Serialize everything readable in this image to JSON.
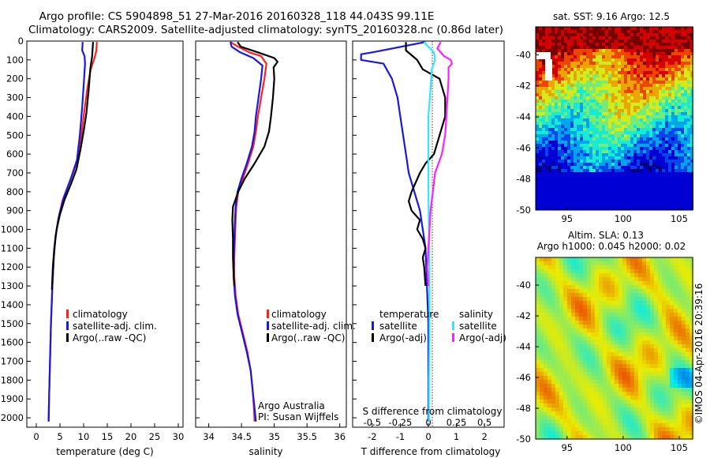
{
  "title": {
    "line1": "Argo profile: CS 5904898_51 27-Mar-2016 20160328_118 44.043S 99.11E",
    "line2": "Climatology: CARS2009. Satellite-adjusted climatology: synTS_20160328.nc (0.86d later)"
  },
  "colors": {
    "climatology": "#ff2020",
    "satellite": "#1818e0",
    "argo": "#000000",
    "sal_satellite": "#30e8ff",
    "sal_argo": "#ff20ff"
  },
  "credits": {
    "org": "Argo Australia",
    "pi": "PI: Susan Wijffels",
    "stamp": "©IMOS 04-Apr-2016 20:39:16"
  },
  "chart_data": [
    {
      "type": "line",
      "xlabel": "temperature (deg C)",
      "xlim": [
        -2,
        31
      ],
      "ylim": [
        2050,
        0
      ],
      "xticks": [
        0,
        5,
        10,
        15,
        20,
        25,
        30
      ],
      "yticks": [
        0,
        100,
        200,
        300,
        400,
        500,
        600,
        700,
        800,
        900,
        1000,
        1100,
        1200,
        1300,
        1400,
        1500,
        1600,
        1700,
        1800,
        1900,
        2000
      ],
      "legend": {
        "placement": "bottom-center",
        "entries": [
          "climatology",
          "satellite-adj. clim.",
          "Argo(..raw -QC)"
        ]
      },
      "series": [
        {
          "name": "climatology",
          "points": [
            [
              12.8,
              5
            ],
            [
              12.7,
              50
            ],
            [
              12.3,
              90
            ],
            [
              11.5,
              150
            ],
            [
              10.8,
              250
            ],
            [
              10.0,
              400
            ],
            [
              9.3,
              550
            ],
            [
              8.5,
              650
            ],
            [
              7.0,
              750
            ],
            [
              5.5,
              850
            ],
            [
              4.6,
              950
            ],
            [
              4.0,
              1050
            ],
            [
              3.7,
              1150
            ],
            [
              3.4,
              1300
            ],
            [
              3.1,
              1500
            ],
            [
              2.9,
              1700
            ],
            [
              2.7,
              1900
            ],
            [
              2.6,
              2020
            ]
          ]
        },
        {
          "name": "satellite-adj. clim.",
          "points": [
            [
              9.8,
              5
            ],
            [
              9.7,
              50
            ],
            [
              10.2,
              80
            ],
            [
              10.3,
              120
            ],
            [
              10.1,
              200
            ],
            [
              9.7,
              350
            ],
            [
              9.2,
              500
            ],
            [
              8.6,
              630
            ],
            [
              7.3,
              730
            ],
            [
              5.8,
              830
            ],
            [
              4.8,
              930
            ],
            [
              4.1,
              1030
            ],
            [
              3.7,
              1150
            ],
            [
              3.4,
              1300
            ],
            [
              3.1,
              1500
            ],
            [
              2.9,
              1700
            ],
            [
              2.7,
              1900
            ],
            [
              2.6,
              2020
            ]
          ]
        },
        {
          "name": "Argo(..raw -QC)",
          "points": [
            [
              12.0,
              5
            ],
            [
              11.9,
              40
            ],
            [
              11.8,
              80
            ],
            [
              11.4,
              150
            ],
            [
              11.1,
              250
            ],
            [
              10.6,
              380
            ],
            [
              10.0,
              480
            ],
            [
              9.3,
              580
            ],
            [
              8.5,
              680
            ],
            [
              7.3,
              760
            ],
            [
              6.0,
              840
            ],
            [
              5.0,
              920
            ],
            [
              4.3,
              1000
            ],
            [
              3.8,
              1100
            ],
            [
              3.5,
              1200
            ],
            [
              3.3,
              1320
            ]
          ]
        }
      ]
    },
    {
      "type": "line",
      "xlabel": "salinity",
      "xlim": [
        33.8,
        36.1
      ],
      "ylim": [
        2050,
        0
      ],
      "xticks": [
        34,
        34.5,
        35,
        35.5,
        36
      ],
      "xtick_labels": [
        "34",
        "34.5",
        "35",
        "35.5",
        "36"
      ],
      "legend": {
        "placement": "bottom-right",
        "entries": [
          "climatology",
          "satellite-adj. clim.",
          "Argo(..raw -QC)"
        ]
      },
      "series": [
        {
          "name": "climatology",
          "points": [
            [
              34.33,
              5
            ],
            [
              34.45,
              30
            ],
            [
              34.62,
              60
            ],
            [
              34.8,
              80
            ],
            [
              34.88,
              120
            ],
            [
              34.85,
              200
            ],
            [
              34.8,
              300
            ],
            [
              34.75,
              400
            ],
            [
              34.72,
              480
            ],
            [
              34.68,
              560
            ],
            [
              34.6,
              650
            ],
            [
              34.52,
              730
            ],
            [
              34.45,
              800
            ],
            [
              34.42,
              880
            ],
            [
              34.41,
              950
            ],
            [
              34.4,
              1050
            ],
            [
              34.39,
              1150
            ],
            [
              34.39,
              1250
            ],
            [
              34.41,
              1350
            ],
            [
              34.45,
              1450
            ],
            [
              34.52,
              1550
            ],
            [
              34.59,
              1650
            ],
            [
              34.64,
              1750
            ],
            [
              34.67,
              1850
            ],
            [
              34.69,
              1950
            ],
            [
              34.7,
              2020
            ]
          ]
        },
        {
          "name": "satellite-adj. clim.",
          "points": [
            [
              34.33,
              5
            ],
            [
              34.35,
              30
            ],
            [
              34.48,
              60
            ],
            [
              34.68,
              90
            ],
            [
              34.82,
              130
            ],
            [
              34.8,
              200
            ],
            [
              34.76,
              300
            ],
            [
              34.72,
              400
            ],
            [
              34.7,
              480
            ],
            [
              34.66,
              560
            ],
            [
              34.58,
              650
            ],
            [
              34.5,
              730
            ],
            [
              34.44,
              800
            ],
            [
              34.41,
              880
            ],
            [
              34.4,
              950
            ],
            [
              34.39,
              1050
            ],
            [
              34.38,
              1150
            ],
            [
              34.38,
              1250
            ],
            [
              34.4,
              1350
            ],
            [
              34.44,
              1450
            ],
            [
              34.51,
              1550
            ],
            [
              34.58,
              1650
            ],
            [
              34.64,
              1750
            ],
            [
              34.67,
              1850
            ],
            [
              34.7,
              1950
            ],
            [
              34.72,
              2020
            ]
          ]
        },
        {
          "name": "Argo(..raw -QC)",
          "points": [
            [
              34.44,
              5
            ],
            [
              34.49,
              30
            ],
            [
              34.75,
              60
            ],
            [
              35.0,
              90
            ],
            [
              35.05,
              110
            ],
            [
              34.99,
              140
            ],
            [
              35.0,
              200
            ],
            [
              34.98,
              300
            ],
            [
              34.95,
              400
            ],
            [
              34.92,
              480
            ],
            [
              34.85,
              560
            ],
            [
              34.7,
              650
            ],
            [
              34.55,
              730
            ],
            [
              34.45,
              800
            ],
            [
              34.37,
              880
            ],
            [
              34.36,
              950
            ],
            [
              34.37,
              1050
            ],
            [
              34.37,
              1150
            ],
            [
              34.38,
              1250
            ],
            [
              34.39,
              1300
            ]
          ]
        }
      ]
    },
    {
      "type": "line",
      "xlabel": "T difference from climatology",
      "xlabel_top": "S difference from climatology",
      "xlim": [
        -2.7,
        2.7
      ],
      "ylim": [
        2050,
        0
      ],
      "xticks": [
        -2,
        -1,
        0,
        1,
        2
      ],
      "top_xticks": [
        -0.5,
        -0.25,
        0,
        0.25,
        0.5
      ],
      "top_xtick_labels": [
        "-0.5",
        "-0.25",
        "0",
        "0.25",
        "0.5"
      ],
      "legend": {
        "placement": "bottom",
        "headers": [
          "temperature",
          "salinity"
        ],
        "entries": [
          "satellite",
          "Argo(-adj)",
          "satellite",
          "Argo(-adj)"
        ]
      },
      "series": [
        {
          "name": "temperature satellite",
          "points": [
            [
              -0.1,
              5
            ],
            [
              -2.0,
              60
            ],
            [
              -2.4,
              70
            ],
            [
              -2.4,
              100
            ],
            [
              -1.6,
              120
            ],
            [
              -1.3,
              200
            ],
            [
              -1.1,
              300
            ],
            [
              -1.0,
              400
            ],
            [
              -0.9,
              500
            ],
            [
              -0.8,
              600
            ],
            [
              -0.7,
              700
            ],
            [
              -0.5,
              800
            ],
            [
              -0.3,
              900
            ],
            [
              -0.2,
              1000
            ],
            [
              -0.1,
              1100
            ],
            [
              -0.05,
              1300
            ],
            [
              0.0,
              1500
            ],
            [
              0.0,
              1700
            ],
            [
              0.0,
              1900
            ],
            [
              0.0,
              2020
            ]
          ]
        },
        {
          "name": "temperature Argo(-adj)",
          "points": [
            [
              -0.8,
              5
            ],
            [
              -0.8,
              50
            ],
            [
              -0.4,
              100
            ],
            [
              -0.2,
              150
            ],
            [
              0.4,
              200
            ],
            [
              0.6,
              300
            ],
            [
              0.6,
              400
            ],
            [
              0.4,
              500
            ],
            [
              0.2,
              600
            ],
            [
              -0.1,
              650
            ],
            [
              -0.3,
              700
            ],
            [
              -0.6,
              800
            ],
            [
              -0.7,
              850
            ],
            [
              -0.6,
              900
            ],
            [
              -0.3,
              950
            ],
            [
              -0.4,
              1000
            ],
            [
              -0.2,
              1050
            ],
            [
              -0.1,
              1100
            ],
            [
              -0.2,
              1150
            ],
            [
              -0.15,
              1200
            ],
            [
              -0.1,
              1300
            ]
          ]
        },
        {
          "name": "salinity satellite",
          "points": [
            [
              -0.04,
              5
            ],
            [
              0.05,
              60
            ],
            [
              0.06,
              100
            ],
            [
              0.03,
              150
            ],
            [
              0.02,
              250
            ],
            [
              0.0,
              400
            ],
            [
              0.0,
              600
            ],
            [
              0.0,
              800
            ],
            [
              0.005,
              1000
            ],
            [
              0.01,
              1200
            ],
            [
              0.01,
              1400
            ],
            [
              0.01,
              1600
            ],
            [
              0.005,
              1800
            ],
            [
              0.005,
              2020
            ]
          ]
        },
        {
          "name": "salinity Argo(-adj)",
          "points": [
            [
              0.11,
              5
            ],
            [
              0.08,
              40
            ],
            [
              0.14,
              80
            ],
            [
              0.2,
              100
            ],
            [
              0.21,
              120
            ],
            [
              0.18,
              140
            ],
            [
              0.18,
              200
            ],
            [
              0.17,
              300
            ],
            [
              0.16,
              400
            ],
            [
              0.15,
              500
            ],
            [
              0.12,
              600
            ],
            [
              0.06,
              700
            ],
            [
              0.04,
              800
            ],
            [
              0.02,
              900
            ],
            [
              0.01,
              1000
            ],
            [
              0.0,
              1100
            ],
            [
              -0.01,
              1200
            ],
            [
              0.0,
              1300
            ]
          ]
        }
      ]
    },
    {
      "type": "heatmap",
      "title": "sat. SST: 9.16  Argo: 12.5",
      "xlim": [
        92.2,
        106.2
      ],
      "ylim": [
        -50,
        -38.2
      ],
      "xticks": [
        95,
        100,
        105
      ],
      "yticks": [
        -40,
        -42,
        -44,
        -46,
        -48,
        -50
      ],
      "colormap": "jet",
      "description_values": {
        "north": "warm",
        "south": "cold"
      }
    },
    {
      "type": "heatmap",
      "title_line1": "Altim. SLA: 0.13",
      "title_line2": "Argo h1000: 0.045 h2000: 0.02",
      "xlim": [
        92.2,
        106.2
      ],
      "ylim": [
        -50,
        -38.2
      ],
      "xticks": [
        95,
        100,
        105
      ],
      "yticks": [
        -40,
        -42,
        -44,
        -46,
        -48,
        -50
      ],
      "colormap": "jet"
    }
  ]
}
